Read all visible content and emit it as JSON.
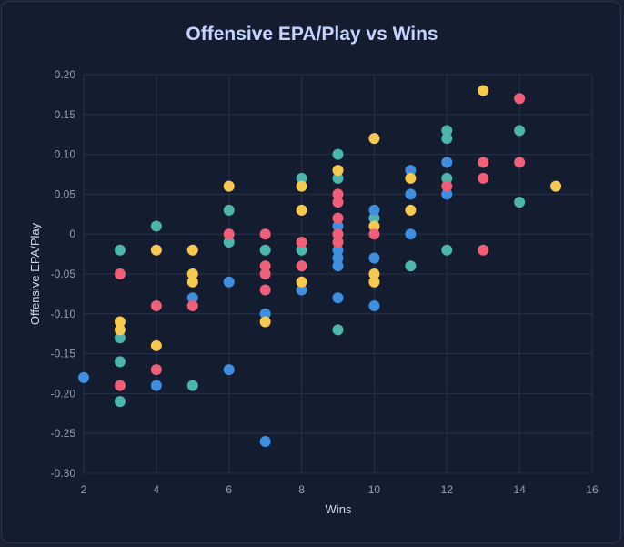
{
  "chart_data": {
    "type": "scatter",
    "title": "Offensive EPA/Play vs Wins",
    "xlabel": "Wins",
    "ylabel": "Offensive EPA/Play",
    "xlim": [
      2,
      16
    ],
    "ylim": [
      -0.3,
      0.2
    ],
    "xticks": [
      "2",
      "4",
      "6",
      "8",
      "10",
      "12",
      "14",
      "16"
    ],
    "yticks": [
      "0.20",
      "0.15",
      "0.10",
      "0.05",
      "0",
      "-0.05",
      "-0.10",
      "-0.15",
      "-0.20",
      "-0.25",
      "-0.30"
    ],
    "grid": true,
    "series": [
      {
        "name": "teal",
        "color": "#4db6ac",
        "points": [
          [
            3,
            -0.02
          ],
          [
            3,
            -0.13
          ],
          [
            3,
            -0.16
          ],
          [
            3,
            -0.21
          ],
          [
            4,
            0.01
          ],
          [
            5,
            -0.19
          ],
          [
            6,
            0.03
          ],
          [
            6,
            -0.01
          ],
          [
            7,
            -0.02
          ],
          [
            8,
            0.07
          ],
          [
            8,
            -0.02
          ],
          [
            9,
            0.1
          ],
          [
            9,
            0.07
          ],
          [
            9,
            -0.12
          ],
          [
            10,
            0.02
          ],
          [
            11,
            -0.04
          ],
          [
            12,
            0.13
          ],
          [
            12,
            0.12
          ],
          [
            12,
            0.07
          ],
          [
            12,
            -0.02
          ],
          [
            14,
            0.13
          ],
          [
            14,
            0.04
          ]
        ]
      },
      {
        "name": "blue",
        "color": "#3f8fe0",
        "points": [
          [
            2,
            -0.18
          ],
          [
            4,
            -0.19
          ],
          [
            5,
            -0.08
          ],
          [
            6,
            -0.06
          ],
          [
            6,
            -0.17
          ],
          [
            7,
            -0.1
          ],
          [
            7,
            -0.26
          ],
          [
            8,
            -0.07
          ],
          [
            9,
            0.01
          ],
          [
            9,
            -0.02
          ],
          [
            9,
            -0.03
          ],
          [
            9,
            -0.04
          ],
          [
            9,
            -0.08
          ],
          [
            10,
            0.03
          ],
          [
            10,
            -0.03
          ],
          [
            10,
            -0.09
          ],
          [
            11,
            0.08
          ],
          [
            11,
            0.05
          ],
          [
            11,
            0.0
          ],
          [
            12,
            0.09
          ],
          [
            12,
            0.05
          ]
        ]
      },
      {
        "name": "yellow",
        "color": "#f7c950",
        "points": [
          [
            3,
            -0.11
          ],
          [
            3,
            -0.12
          ],
          [
            4,
            -0.02
          ],
          [
            4,
            -0.14
          ],
          [
            5,
            -0.02
          ],
          [
            5,
            -0.05
          ],
          [
            5,
            -0.06
          ],
          [
            6,
            0.06
          ],
          [
            7,
            -0.11
          ],
          [
            8,
            0.06
          ],
          [
            8,
            0.03
          ],
          [
            8,
            -0.06
          ],
          [
            9,
            0.08
          ],
          [
            10,
            0.12
          ],
          [
            10,
            0.01
          ],
          [
            10,
            -0.05
          ],
          [
            10,
            -0.06
          ],
          [
            11,
            0.07
          ],
          [
            11,
            0.03
          ],
          [
            13,
            0.18
          ],
          [
            15,
            0.06
          ]
        ]
      },
      {
        "name": "red",
        "color": "#ef5f78",
        "points": [
          [
            3,
            -0.05
          ],
          [
            3,
            -0.19
          ],
          [
            4,
            -0.09
          ],
          [
            4,
            -0.17
          ],
          [
            5,
            -0.09
          ],
          [
            6,
            0.0
          ],
          [
            7,
            0.0
          ],
          [
            7,
            -0.04
          ],
          [
            7,
            -0.05
          ],
          [
            7,
            -0.07
          ],
          [
            8,
            -0.01
          ],
          [
            8,
            -0.04
          ],
          [
            9,
            0.05
          ],
          [
            9,
            0.04
          ],
          [
            9,
            0.02
          ],
          [
            9,
            0.0
          ],
          [
            9,
            -0.01
          ],
          [
            10,
            0.0
          ],
          [
            12,
            0.06
          ],
          [
            13,
            0.09
          ],
          [
            13,
            0.07
          ],
          [
            13,
            -0.02
          ],
          [
            14,
            0.17
          ],
          [
            14,
            0.09
          ]
        ]
      }
    ]
  }
}
